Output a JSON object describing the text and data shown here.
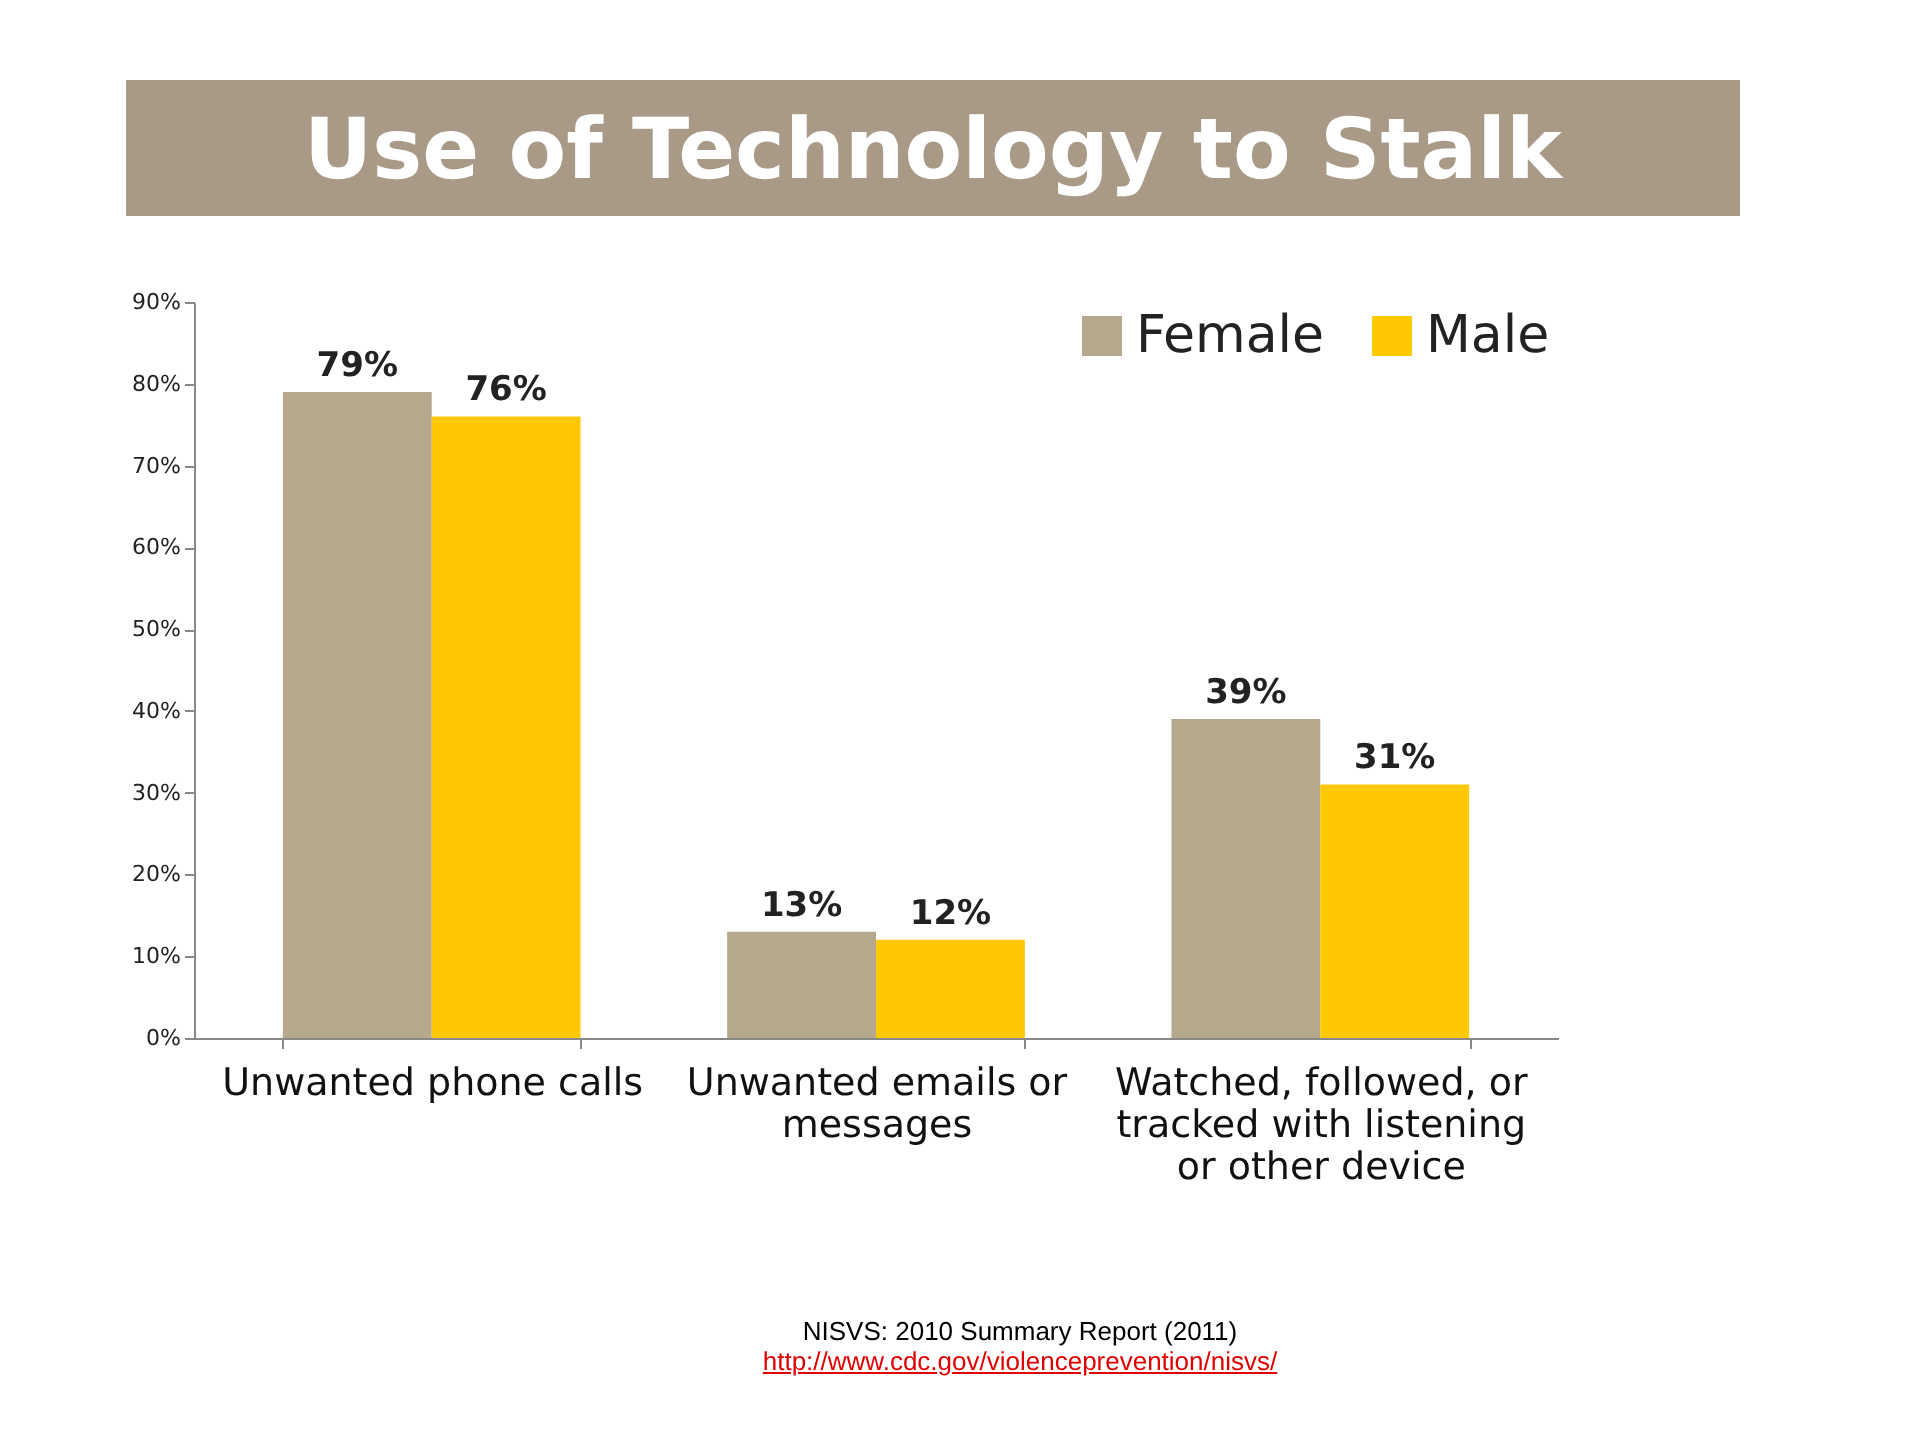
{
  "chart_data": {
    "type": "bar",
    "title": "Use of Technology to Stalk",
    "categories": [
      "Unwanted phone calls",
      "Unwanted emails or messages",
      "Watched, followed, or tracked with listening or other device"
    ],
    "series": [
      {
        "name": "Female",
        "color": "#b5a88d",
        "values": [
          79,
          13,
          39
        ],
        "value_labels": [
          "79%",
          "13%",
          "39%"
        ]
      },
      {
        "name": "Male",
        "color": "#ffc800",
        "values": [
          76,
          12,
          31
        ],
        "value_labels": [
          "76%",
          "12%",
          "31%"
        ]
      }
    ],
    "ylim": [
      0,
      90
    ],
    "yticks": [
      {
        "value": 0,
        "label": "0%"
      },
      {
        "value": 10,
        "label": "10%"
      },
      {
        "value": 20,
        "label": "20%"
      },
      {
        "value": 30,
        "label": "30%"
      },
      {
        "value": 40,
        "label": "40%"
      },
      {
        "value": 50,
        "label": "50%"
      },
      {
        "value": 60,
        "label": "60%"
      },
      {
        "value": 70,
        "label": "70%"
      },
      {
        "value": 80,
        "label": "80%"
      },
      {
        "value": 90,
        "label": "90%"
      }
    ],
    "grid": false,
    "legend": "top right",
    "annotations": [
      "NISVS: 2010 Summary Report (2011)",
      "http://www.cdc.gov/violenceprevention/nisvs/"
    ]
  }
}
